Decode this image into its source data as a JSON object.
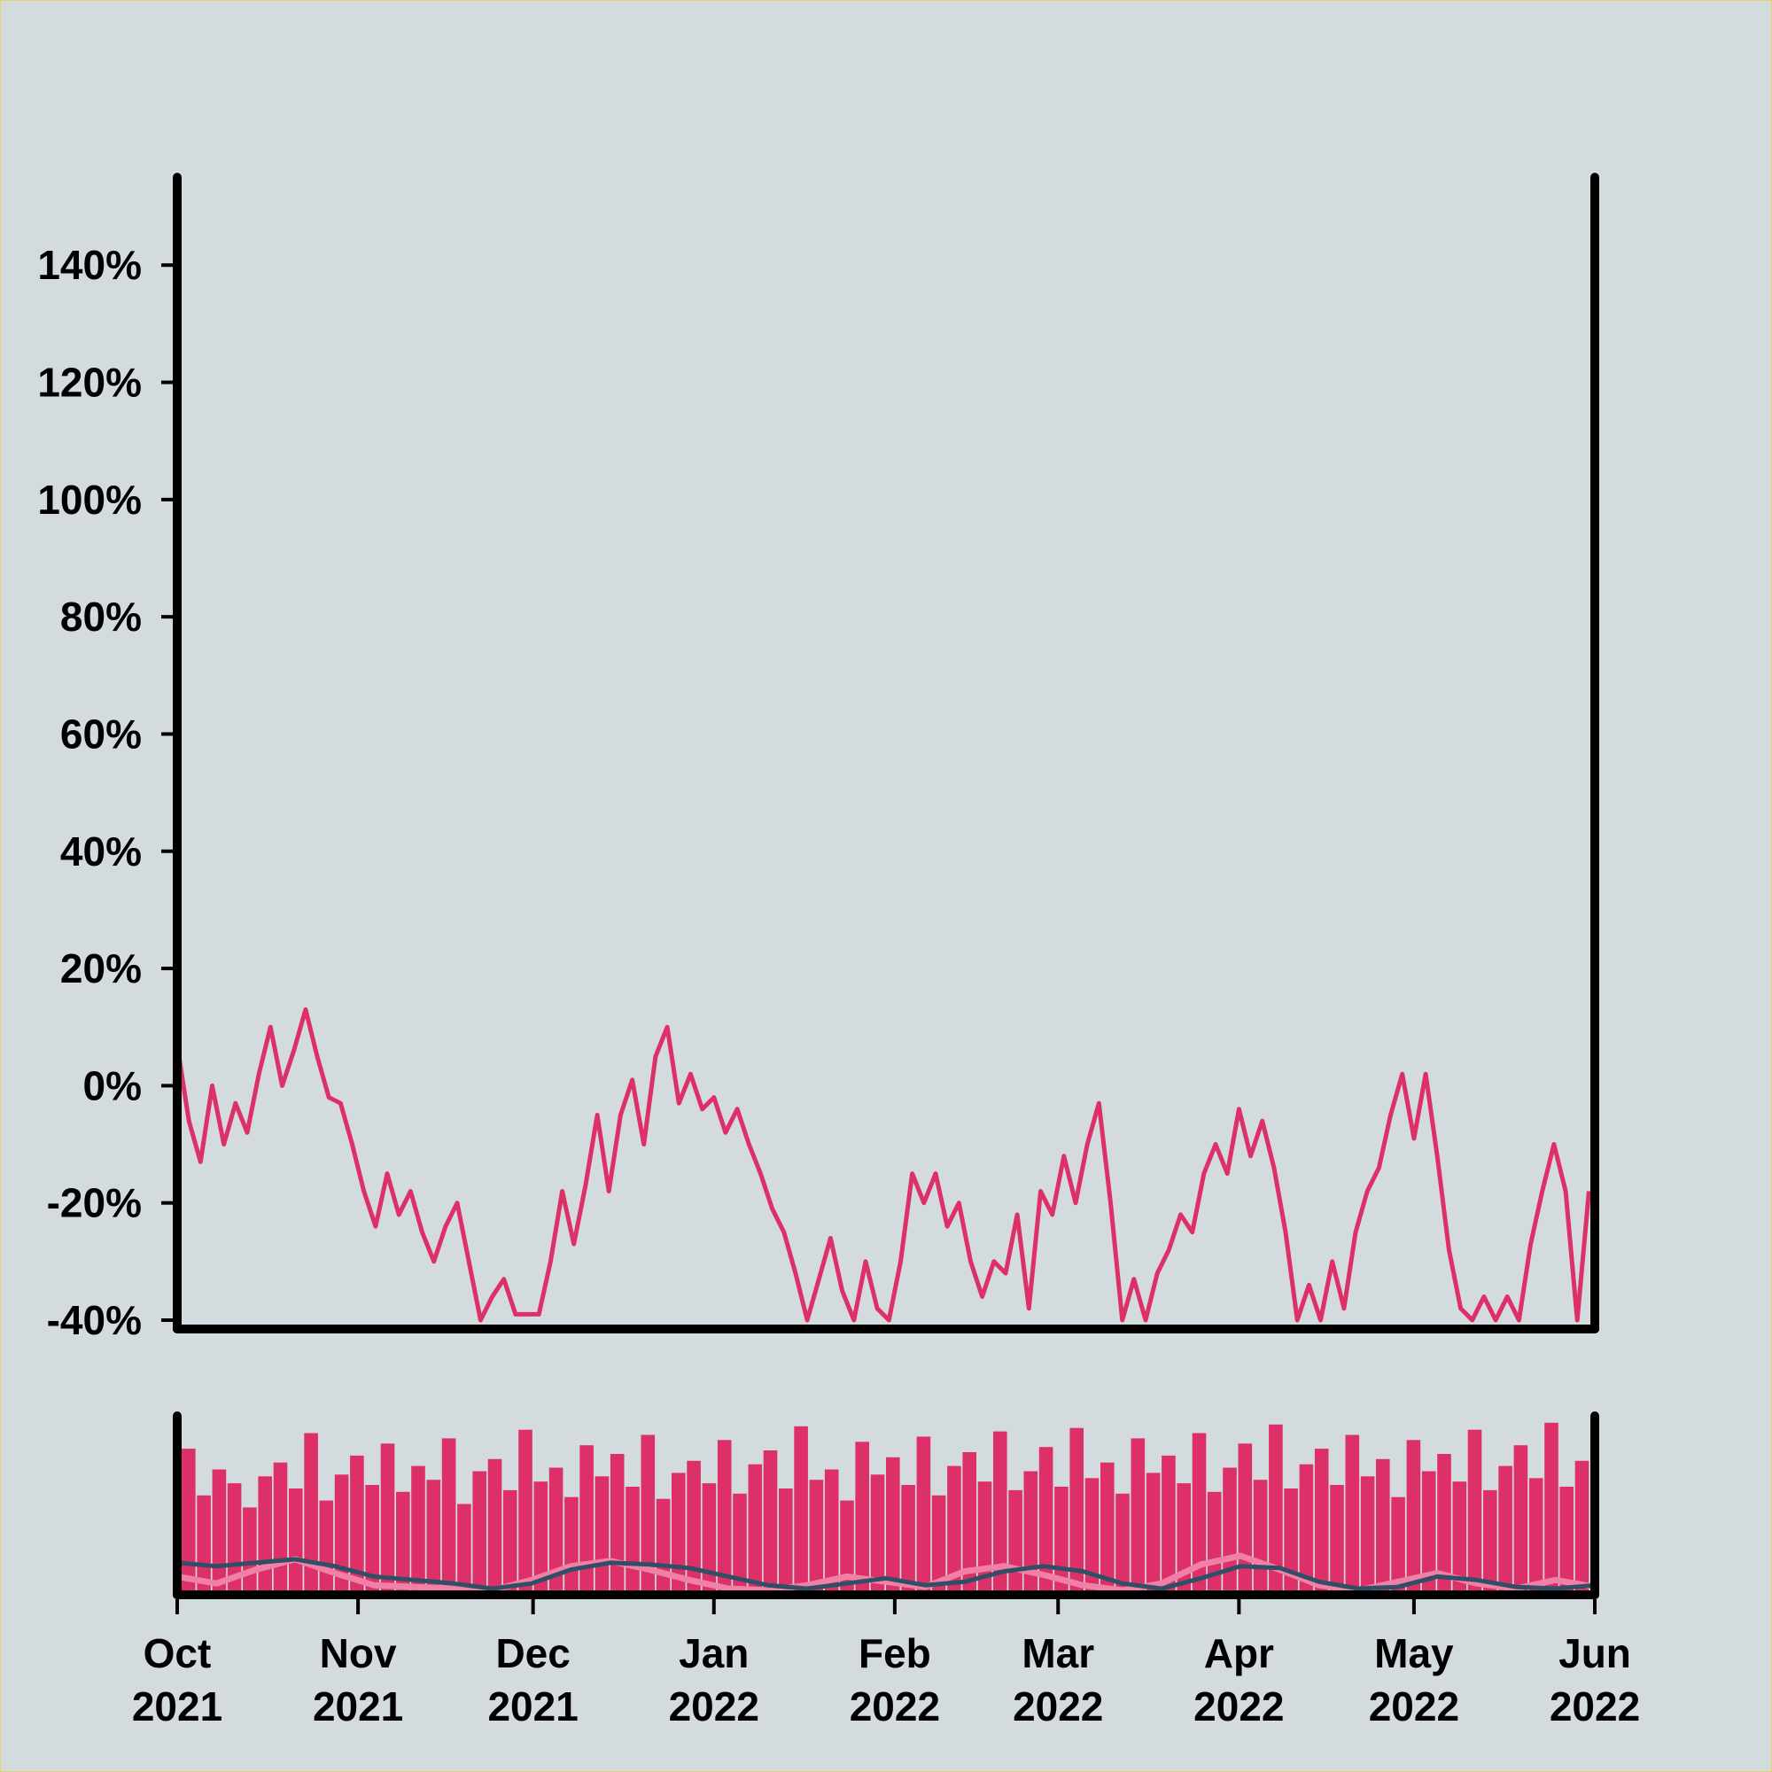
{
  "chart_data": [
    {
      "type": "line",
      "panel": "main",
      "yaxis": {
        "min": -40,
        "max": 155,
        "ticks": [
          -40,
          -20,
          0,
          20,
          40,
          60,
          80,
          100,
          120,
          140
        ],
        "tick_labels": [
          "-40%",
          "-20%",
          "0%",
          "20%",
          "40%",
          "60%",
          "80%",
          "100%",
          "120%",
          "140%"
        ]
      },
      "xaxis": {
        "range": [
          "2021-10-01",
          "2022-06-01"
        ],
        "ticks": [
          "2021-10-01",
          "2021-11-01",
          "2021-12-01",
          "2022-01-01",
          "2022-02-01",
          "2022-03-01",
          "2022-04-01",
          "2022-05-01",
          "2022-06-01"
        ],
        "tick_labels_month": [
          "Oct",
          "Nov",
          "Dec",
          "Jan",
          "Feb",
          "Mar",
          "Apr",
          "May",
          "Jun"
        ],
        "tick_labels_year": [
          "2021",
          "2021",
          "2021",
          "2022",
          "2022",
          "2022",
          "2022",
          "2022",
          "2022"
        ]
      },
      "series": [
        {
          "color": "#dd3068",
          "points": [
            [
              "2021-10-01",
              7
            ],
            [
              "2021-10-03",
              -6
            ],
            [
              "2021-10-05",
              -13
            ],
            [
              "2021-10-07",
              0
            ],
            [
              "2021-10-09",
              -10
            ],
            [
              "2021-10-11",
              -3
            ],
            [
              "2021-10-13",
              -8
            ],
            [
              "2021-10-15",
              2
            ],
            [
              "2021-10-17",
              10
            ],
            [
              "2021-10-19",
              0
            ],
            [
              "2021-10-21",
              6
            ],
            [
              "2021-10-23",
              13
            ],
            [
              "2021-10-25",
              5
            ],
            [
              "2021-10-27",
              -2
            ],
            [
              "2021-10-29",
              -3
            ],
            [
              "2021-10-31",
              -10
            ],
            [
              "2021-11-02",
              -18
            ],
            [
              "2021-11-04",
              -24
            ],
            [
              "2021-11-06",
              -15
            ],
            [
              "2021-11-08",
              -22
            ],
            [
              "2021-11-10",
              -18
            ],
            [
              "2021-11-12",
              -25
            ],
            [
              "2021-11-14",
              -30
            ],
            [
              "2021-11-16",
              -24
            ],
            [
              "2021-11-18",
              -20
            ],
            [
              "2021-11-20",
              -30
            ],
            [
              "2021-11-22",
              -40
            ],
            [
              "2021-11-24",
              -36
            ],
            [
              "2021-11-26",
              -33
            ],
            [
              "2021-11-28",
              -39
            ],
            [
              "2021-11-30",
              -39
            ],
            [
              "2021-12-02",
              -39
            ],
            [
              "2021-12-04",
              -30
            ],
            [
              "2021-12-06",
              -18
            ],
            [
              "2021-12-08",
              -27
            ],
            [
              "2021-12-10",
              -17
            ],
            [
              "2021-12-12",
              -5
            ],
            [
              "2021-12-14",
              -18
            ],
            [
              "2021-12-16",
              -5
            ],
            [
              "2021-12-18",
              1
            ],
            [
              "2021-12-20",
              -10
            ],
            [
              "2021-12-22",
              5
            ],
            [
              "2021-12-24",
              10
            ],
            [
              "2021-12-26",
              -3
            ],
            [
              "2021-12-28",
              2
            ],
            [
              "2021-12-30",
              -4
            ],
            [
              "2022-01-01",
              -2
            ],
            [
              "2022-01-03",
              -8
            ],
            [
              "2022-01-05",
              -4
            ],
            [
              "2022-01-07",
              -10
            ],
            [
              "2022-01-09",
              -15
            ],
            [
              "2022-01-11",
              -21
            ],
            [
              "2022-01-13",
              -25
            ],
            [
              "2022-01-15",
              -32
            ],
            [
              "2022-01-17",
              -40
            ],
            [
              "2022-01-19",
              -33
            ],
            [
              "2022-01-21",
              -26
            ],
            [
              "2022-01-23",
              -35
            ],
            [
              "2022-01-25",
              -40
            ],
            [
              "2022-01-27",
              -30
            ],
            [
              "2022-01-29",
              -38
            ],
            [
              "2022-01-31",
              -40
            ],
            [
              "2022-02-02",
              -30
            ],
            [
              "2022-02-04",
              -15
            ],
            [
              "2022-02-06",
              -20
            ],
            [
              "2022-02-08",
              -15
            ],
            [
              "2022-02-10",
              -24
            ],
            [
              "2022-02-12",
              -20
            ],
            [
              "2022-02-14",
              -30
            ],
            [
              "2022-02-16",
              -36
            ],
            [
              "2022-02-18",
              -30
            ],
            [
              "2022-02-20",
              -32
            ],
            [
              "2022-02-22",
              -22
            ],
            [
              "2022-02-24",
              -38
            ],
            [
              "2022-02-26",
              -18
            ],
            [
              "2022-02-28",
              -22
            ],
            [
              "2022-03-02",
              -12
            ],
            [
              "2022-03-04",
              -20
            ],
            [
              "2022-03-06",
              -10
            ],
            [
              "2022-03-08",
              -3
            ],
            [
              "2022-03-10",
              -20
            ],
            [
              "2022-03-12",
              -40
            ],
            [
              "2022-03-14",
              -33
            ],
            [
              "2022-03-16",
              -40
            ],
            [
              "2022-03-18",
              -32
            ],
            [
              "2022-03-20",
              -28
            ],
            [
              "2022-03-22",
              -22
            ],
            [
              "2022-03-24",
              -25
            ],
            [
              "2022-03-26",
              -15
            ],
            [
              "2022-03-28",
              -10
            ],
            [
              "2022-03-30",
              -15
            ],
            [
              "2022-04-01",
              -4
            ],
            [
              "2022-04-03",
              -12
            ],
            [
              "2022-04-05",
              -6
            ],
            [
              "2022-04-07",
              -14
            ],
            [
              "2022-04-09",
              -25
            ],
            [
              "2022-04-11",
              -40
            ],
            [
              "2022-04-13",
              -34
            ],
            [
              "2022-04-15",
              -40
            ],
            [
              "2022-04-17",
              -30
            ],
            [
              "2022-04-19",
              -38
            ],
            [
              "2022-04-21",
              -25
            ],
            [
              "2022-04-23",
              -18
            ],
            [
              "2022-04-25",
              -14
            ],
            [
              "2022-04-27",
              -5
            ],
            [
              "2022-04-29",
              2
            ],
            [
              "2022-05-01",
              -9
            ],
            [
              "2022-05-03",
              2
            ],
            [
              "2022-05-05",
              -12
            ],
            [
              "2022-05-07",
              -28
            ],
            [
              "2022-05-09",
              -38
            ],
            [
              "2022-05-11",
              -40
            ],
            [
              "2022-05-13",
              -36
            ],
            [
              "2022-05-15",
              -40
            ],
            [
              "2022-05-17",
              -36
            ],
            [
              "2022-05-19",
              -40
            ],
            [
              "2022-05-21",
              -27
            ],
            [
              "2022-05-23",
              -18
            ],
            [
              "2022-05-25",
              -10
            ],
            [
              "2022-05-27",
              -18
            ],
            [
              "2022-05-29",
              -40
            ],
            [
              "2022-05-31",
              -18
            ]
          ]
        }
      ]
    },
    {
      "type": "bar",
      "panel": "overview",
      "xaxis": {
        "range": [
          "2021-10-01",
          "2022-06-01"
        ]
      },
      "bar_color": "#dd3068",
      "bars": [
        0.82,
        0.55,
        0.7,
        0.62,
        0.48,
        0.66,
        0.74,
        0.59,
        0.91,
        0.52,
        0.67,
        0.78,
        0.61,
        0.85,
        0.57,
        0.72,
        0.64,
        0.88,
        0.5,
        0.69,
        0.76,
        0.58,
        0.93,
        0.63,
        0.71,
        0.54,
        0.84,
        0.66,
        0.79,
        0.6,
        0.9,
        0.53,
        0.68,
        0.75,
        0.62,
        0.87,
        0.56,
        0.73,
        0.81,
        0.59,
        0.95,
        0.64,
        0.7,
        0.52,
        0.86,
        0.67,
        0.77,
        0.61,
        0.89,
        0.55,
        0.72,
        0.8,
        0.63,
        0.92,
        0.58,
        0.69,
        0.83,
        0.6,
        0.94,
        0.65,
        0.74,
        0.56,
        0.88,
        0.68,
        0.78,
        0.62,
        0.91,
        0.57,
        0.71,
        0.85,
        0.64,
        0.96,
        0.59,
        0.73,
        0.82,
        0.61,
        0.9,
        0.66,
        0.76,
        0.54,
        0.87,
        0.69,
        0.79,
        0.63,
        0.93,
        0.58,
        0.72,
        0.84,
        0.65,
        0.97,
        0.6,
        0.75
      ],
      "series": [
        {
          "color": "#f080a8",
          "points": [
            0.08,
            0.04,
            0.12,
            0.18,
            0.1,
            0.03,
            0.02,
            0.01,
            0.0,
            0.06,
            0.14,
            0.17,
            0.12,
            0.06,
            0.01,
            0.0,
            0.03,
            0.08,
            0.05,
            0.02,
            0.11,
            0.14,
            0.09,
            0.03,
            0.0,
            0.04,
            0.15,
            0.2,
            0.12,
            0.03,
            0.0,
            0.05,
            0.1,
            0.04,
            0.01,
            0.06,
            0.02
          ]
        },
        {
          "color": "#2f4f66",
          "points": [
            0.16,
            0.14,
            0.16,
            0.18,
            0.14,
            0.08,
            0.06,
            0.04,
            0.01,
            0.04,
            0.12,
            0.16,
            0.15,
            0.13,
            0.08,
            0.03,
            0.01,
            0.04,
            0.07,
            0.03,
            0.05,
            0.11,
            0.14,
            0.11,
            0.04,
            0.01,
            0.07,
            0.14,
            0.13,
            0.05,
            0.01,
            0.02,
            0.08,
            0.06,
            0.02,
            0.01,
            0.03
          ]
        }
      ]
    }
  ]
}
